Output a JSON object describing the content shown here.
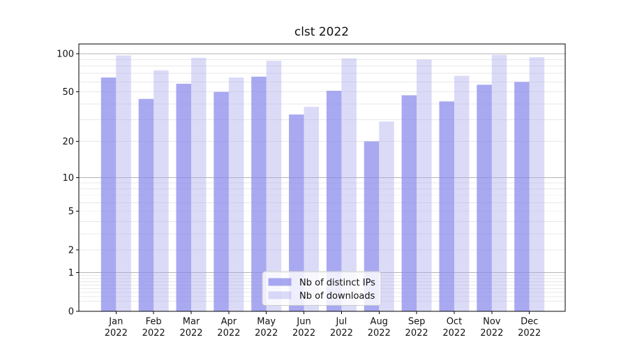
{
  "figure": {
    "background": "#ffffff",
    "title": "clst 2022"
  },
  "chart_data": {
    "type": "bar",
    "title": "clst 2022",
    "xlabel": "",
    "ylabel": "",
    "categories": [
      "Jan 2022",
      "Feb 2022",
      "Mar 2022",
      "Apr 2022",
      "May 2022",
      "Jun 2022",
      "Jul 2022",
      "Aug 2022",
      "Sep 2022",
      "Oct 2022",
      "Nov 2022",
      "Dec 2022"
    ],
    "months": [
      "Jan",
      "Feb",
      "Mar",
      "Apr",
      "May",
      "Jun",
      "Jul",
      "Aug",
      "Sep",
      "Oct",
      "Nov",
      "Dec"
    ],
    "year_line": "2022",
    "series": [
      {
        "name": "Nb of distinct IPs",
        "color": "#8888ec",
        "opacity": 0.72,
        "values": [
          65,
          44,
          58,
          50,
          66,
          33,
          51,
          20,
          47,
          42,
          57,
          60
        ]
      },
      {
        "name": "Nb of downloads",
        "color": "#aaaaee",
        "opacity": 0.42,
        "values": [
          97,
          74,
          93,
          65,
          88,
          38,
          92,
          29,
          90,
          67,
          98,
          94
        ]
      }
    ],
    "yscale": "log1p",
    "ylim": [
      0,
      120
    ],
    "yticks": [
      0,
      1,
      2,
      5,
      10,
      20,
      50,
      100
    ],
    "major_gridlines": [
      1,
      10,
      100
    ],
    "minor_gridlines": [
      0.2,
      0.3,
      0.4,
      0.5,
      0.6,
      0.7,
      0.8,
      0.9,
      2,
      3,
      4,
      5,
      6,
      7,
      8,
      9,
      20,
      30,
      40,
      50,
      60,
      70,
      80,
      90
    ],
    "grid": true,
    "legend_position": "lower center",
    "colors": {
      "spine": "#000000",
      "tick_text": "#111111",
      "major_grid": "#b3b3b3",
      "minor_grid": "#e8e8e8",
      "legend_border": "#cccccc",
      "legend_background": "rgba(255,255,255,0.8)"
    }
  },
  "legend": {
    "items": [
      {
        "label": "Nb of distinct IPs"
      },
      {
        "label": "Nb of downloads"
      }
    ]
  }
}
